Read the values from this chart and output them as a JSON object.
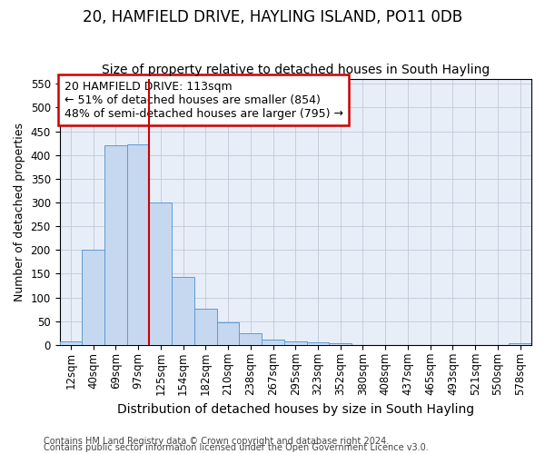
{
  "title": "20, HAMFIELD DRIVE, HAYLING ISLAND, PO11 0DB",
  "subtitle": "Size of property relative to detached houses in South Hayling",
  "xlabel": "Distribution of detached houses by size in South Hayling",
  "ylabel": "Number of detached properties",
  "categories": [
    "12sqm",
    "40sqm",
    "69sqm",
    "97sqm",
    "125sqm",
    "154sqm",
    "182sqm",
    "210sqm",
    "238sqm",
    "267sqm",
    "295sqm",
    "323sqm",
    "352sqm",
    "380sqm",
    "408sqm",
    "437sqm",
    "465sqm",
    "493sqm",
    "521sqm",
    "550sqm",
    "578sqm"
  ],
  "values": [
    8,
    200,
    420,
    422,
    300,
    143,
    77,
    48,
    24,
    12,
    8,
    5,
    3,
    0,
    0,
    0,
    0,
    0,
    0,
    0,
    3
  ],
  "bar_color": "#c5d8f0",
  "bar_edge_color": "#5b9bd5",
  "vline_color": "#cc0000",
  "vline_position": 3.5,
  "annotation_lines": [
    "20 HAMFIELD DRIVE: 113sqm",
    "← 51% of detached houses are smaller (854)",
    "48% of semi-detached houses are larger (795) →"
  ],
  "annotation_box_color": "#ffffff",
  "annotation_box_edge": "#cc0000",
  "ylim": [
    0,
    560
  ],
  "yticks": [
    0,
    50,
    100,
    150,
    200,
    250,
    300,
    350,
    400,
    450,
    500,
    550
  ],
  "footnote1": "Contains HM Land Registry data © Crown copyright and database right 2024.",
  "footnote2": "Contains public sector information licensed under the Open Government Licence v3.0.",
  "title_fontsize": 12,
  "subtitle_fontsize": 10,
  "xlabel_fontsize": 10,
  "ylabel_fontsize": 9,
  "tick_fontsize": 8.5,
  "annotation_fontsize": 9,
  "footnote_fontsize": 7,
  "bg_color": "#e8eef8"
}
